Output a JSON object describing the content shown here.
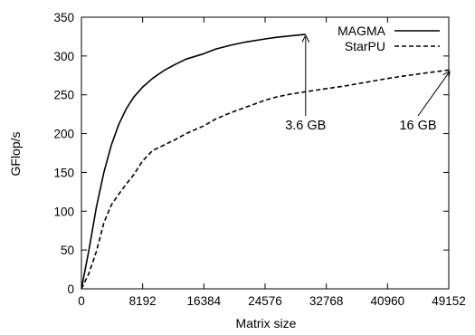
{
  "chart_data": {
    "type": "line",
    "title": "",
    "xlabel": "Matrix size",
    "ylabel": "GFlop/s",
    "xlim": [
      0,
      49152
    ],
    "ylim": [
      0,
      350
    ],
    "xticks": [
      0,
      8192,
      16384,
      24576,
      32768,
      40960,
      49152
    ],
    "yticks": [
      0,
      50,
      100,
      150,
      200,
      250,
      300,
      350
    ],
    "grid": false,
    "legend": "top-right",
    "series": [
      {
        "name": "MAGMA",
        "style": "solid",
        "color": "#000000",
        "x": [
          0,
          1000,
          2000,
          3000,
          4000,
          5000,
          6000,
          7000,
          8192,
          9500,
          11000,
          12500,
          14000,
          16384,
          18000,
          20000,
          22000,
          24576,
          26000,
          28000,
          30000
        ],
        "y": [
          0,
          50,
          105,
          150,
          185,
          212,
          232,
          247,
          260,
          271,
          281,
          289,
          296,
          303,
          309,
          314,
          318,
          322,
          324,
          326,
          328
        ]
      },
      {
        "name": "StarPU",
        "style": "dashed",
        "color": "#000000",
        "x": [
          0,
          1000,
          2000,
          3000,
          4000,
          5000,
          6000,
          7000,
          8192,
          9500,
          11000,
          12500,
          14000,
          16384,
          18000,
          20000,
          22000,
          24576,
          26000,
          28000,
          30000,
          32768,
          35000,
          38000,
          40960,
          43000,
          46000,
          49152
        ],
        "y": [
          0,
          20,
          48,
          85,
          108,
          122,
          135,
          147,
          165,
          178,
          185,
          192,
          200,
          210,
          219,
          227,
          234,
          243,
          247,
          251,
          254,
          258,
          261,
          266,
          271,
          274,
          278,
          282
        ]
      }
    ],
    "annotations": [
      {
        "text": "3.6 GB",
        "x": 30000,
        "y": 328
      },
      {
        "text": "16 GB",
        "x": 49152,
        "y": 282
      }
    ]
  }
}
